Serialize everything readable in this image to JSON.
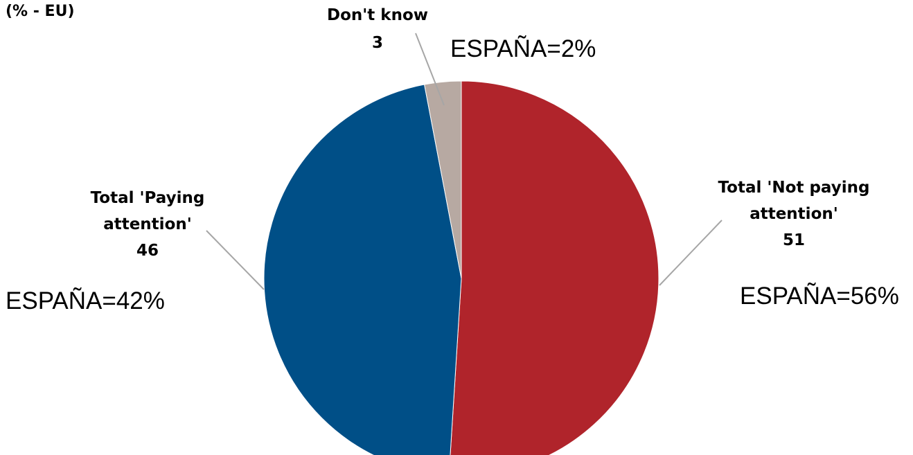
{
  "chart_data": {
    "type": "pie",
    "subtitle": "(% - EU)",
    "slices": [
      {
        "name_lines": [
          "Total 'Not paying",
          "attention'"
        ],
        "value": 51,
        "color": "#b0242b",
        "spain_label": "ESPAÑA=56%"
      },
      {
        "name_lines": [
          "Total 'Paying",
          "attention'"
        ],
        "value": 46,
        "color": "#004f87",
        "spain_label": "ESPAÑA=42%"
      },
      {
        "name_lines": [
          "Don't know"
        ],
        "value": 3,
        "color": "#b7a9a2",
        "spain_label": "ESPAÑA=2%"
      }
    ]
  }
}
